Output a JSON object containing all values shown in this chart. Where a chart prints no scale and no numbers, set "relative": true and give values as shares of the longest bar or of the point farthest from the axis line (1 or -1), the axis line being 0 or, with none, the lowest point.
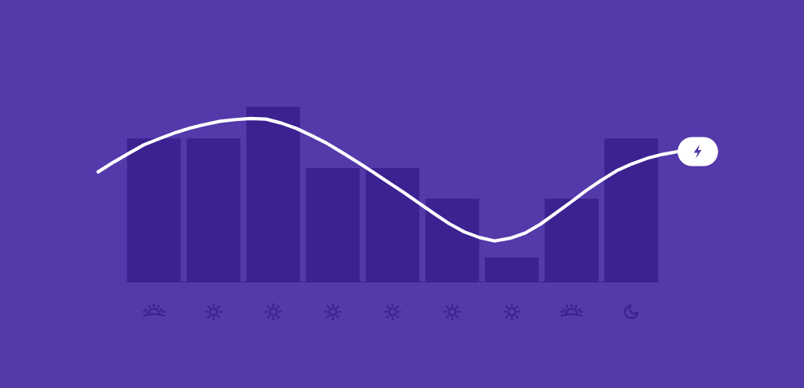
{
  "chart_data": [
    {
      "type": "bar",
      "relative": true,
      "categories": [
        null,
        null,
        null,
        null,
        null,
        null,
        null,
        null,
        null
      ],
      "series": [
        {
          "color": "#3c2191",
          "values": [
            0.82,
            0.82,
            1,
            0.65,
            0.65,
            0.475,
            0.14,
            0.475,
            0.82
          ]
        }
      ]
    },
    {
      "type": "line",
      "relative": true,
      "categories": [
        null,
        null,
        null,
        null,
        null,
        null,
        null,
        null,
        null,
        null,
        null,
        null,
        null,
        null,
        null,
        null,
        null,
        null,
        null,
        null,
        null,
        null,
        null,
        null,
        null,
        null,
        null,
        null,
        null,
        null,
        null,
        null,
        null,
        null,
        null,
        null,
        null,
        null,
        null
      ],
      "series": [
        {
          "color": "#ffffff",
          "values": [
            0.673,
            0.732,
            0.786,
            0.839,
            0.876,
            0.911,
            0.94,
            0.963,
            0.983,
            0.993,
            1,
            0.996,
            0.972,
            0.939,
            0.895,
            0.848,
            0.792,
            0.734,
            0.674,
            0.611,
            0.55,
            0.485,
            0.42,
            0.358,
            0.307,
            0.272,
            0.251,
            0.267,
            0.299,
            0.353,
            0.42,
            0.488,
            0.559,
            0.622,
            0.68,
            0.722,
            0.756,
            0.78,
            0.797
          ]
        }
      ]
    }
  ]
}
